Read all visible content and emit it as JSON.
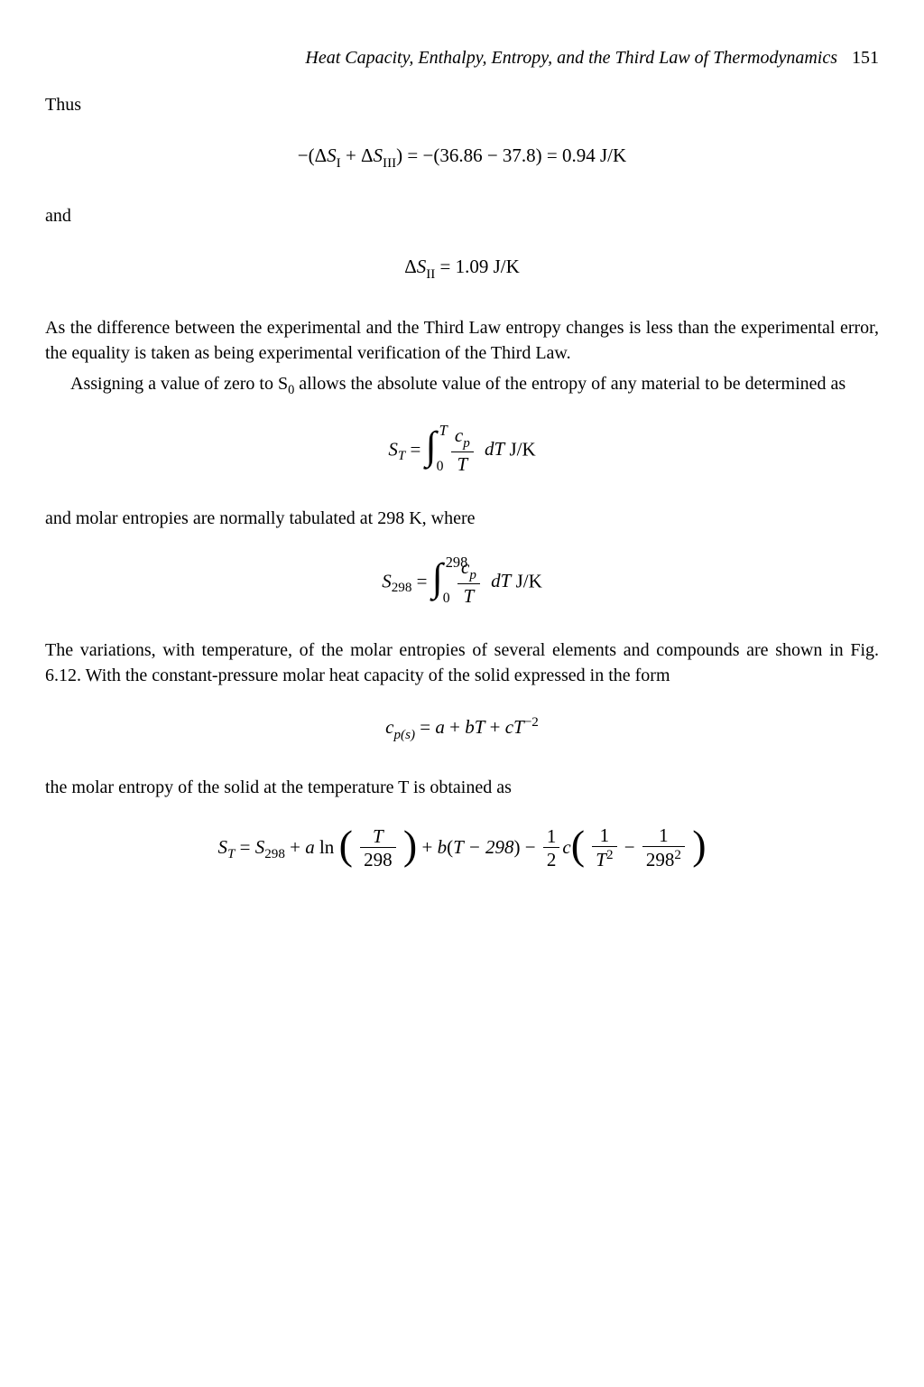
{
  "header": {
    "running_title": "Heat Capacity, Enthalpy, Entropy, and the Third Law of Thermodynamics",
    "page_number": "151"
  },
  "text": {
    "thus": "Thus",
    "and": "and",
    "p1": "As the difference between the experimental and the Third Law entropy changes is less than the experimental error, the equality is taken as being experimental verification of the Third Law.",
    "p2a": "Assigning a value of zero to ",
    "p2b": " allows the absolute value of the entropy of any material to be determined as",
    "p3": "and molar entropies are normally tabulated at 298 K, where",
    "p4": "The variations, with temperature, of the molar entropies of several elements and compounds are shown in Fig. 6.12. With the constant-pressure molar heat capacity of the solid expressed in the form",
    "p5a": "the molar entropy of the solid at the temperature ",
    "p5b": " is obtained as"
  },
  "eq": {
    "e1_lhs_open": "−(Δ",
    "e1_S": "S",
    "e1_I": "I",
    "e1_plus": " + Δ",
    "e1_III": "III",
    "e1_close": ") =  −(36.86 − 37.8) = 0.94 J/K",
    "e2_lhs": "Δ",
    "e2_II": "II",
    "e2_rhs": " = 1.09 J/K",
    "S_symbol": "S",
    "S0_sub": "0",
    "T_symbol": "T",
    "eq3_eq": " = ",
    "int_low0": "0",
    "int_highT": "T",
    "int_high298": "298",
    "cp_num": "c",
    "cp_sub": "p",
    "frac_denT": "T",
    "dT": "dT",
    "JK": " J/K",
    "S298_sub": "298",
    "eq5_cps_c": "c",
    "eq5_cps_sub": "p(s)",
    "eq5_rhs_a": " = ",
    "eq5_a": "a",
    "eq5_plus_bT": " + ",
    "eq5_b": "b",
    "eq5_T": "T",
    "eq5_plus_cT": " + ",
    "eq5_c": "c",
    "eq5_Texp": "−2",
    "eq6_eq": " = ",
    "eq6_plus1": " + ",
    "eq6_a": "a",
    "eq6_ln": " ln",
    "eq6_frac1_num": "T",
    "eq6_frac1_den": "298",
    "eq6_plus2": " + ",
    "eq6_b": "b",
    "eq6_paren2": "(",
    "eq6_Tminus": "T − 298",
    "eq6_paren2c": ")",
    "eq6_minus": " − ",
    "eq6_half_num": "1",
    "eq6_half_den": "2",
    "eq6_c": "c",
    "eq6_f2_num1": "1",
    "eq6_f2_denT2_T": "T",
    "eq6_f2_denT2_e": "2",
    "eq6_f2_minus": " − ",
    "eq6_f3_num": "1",
    "eq6_f3_den_base": "298",
    "eq6_f3_den_exp": "2"
  }
}
